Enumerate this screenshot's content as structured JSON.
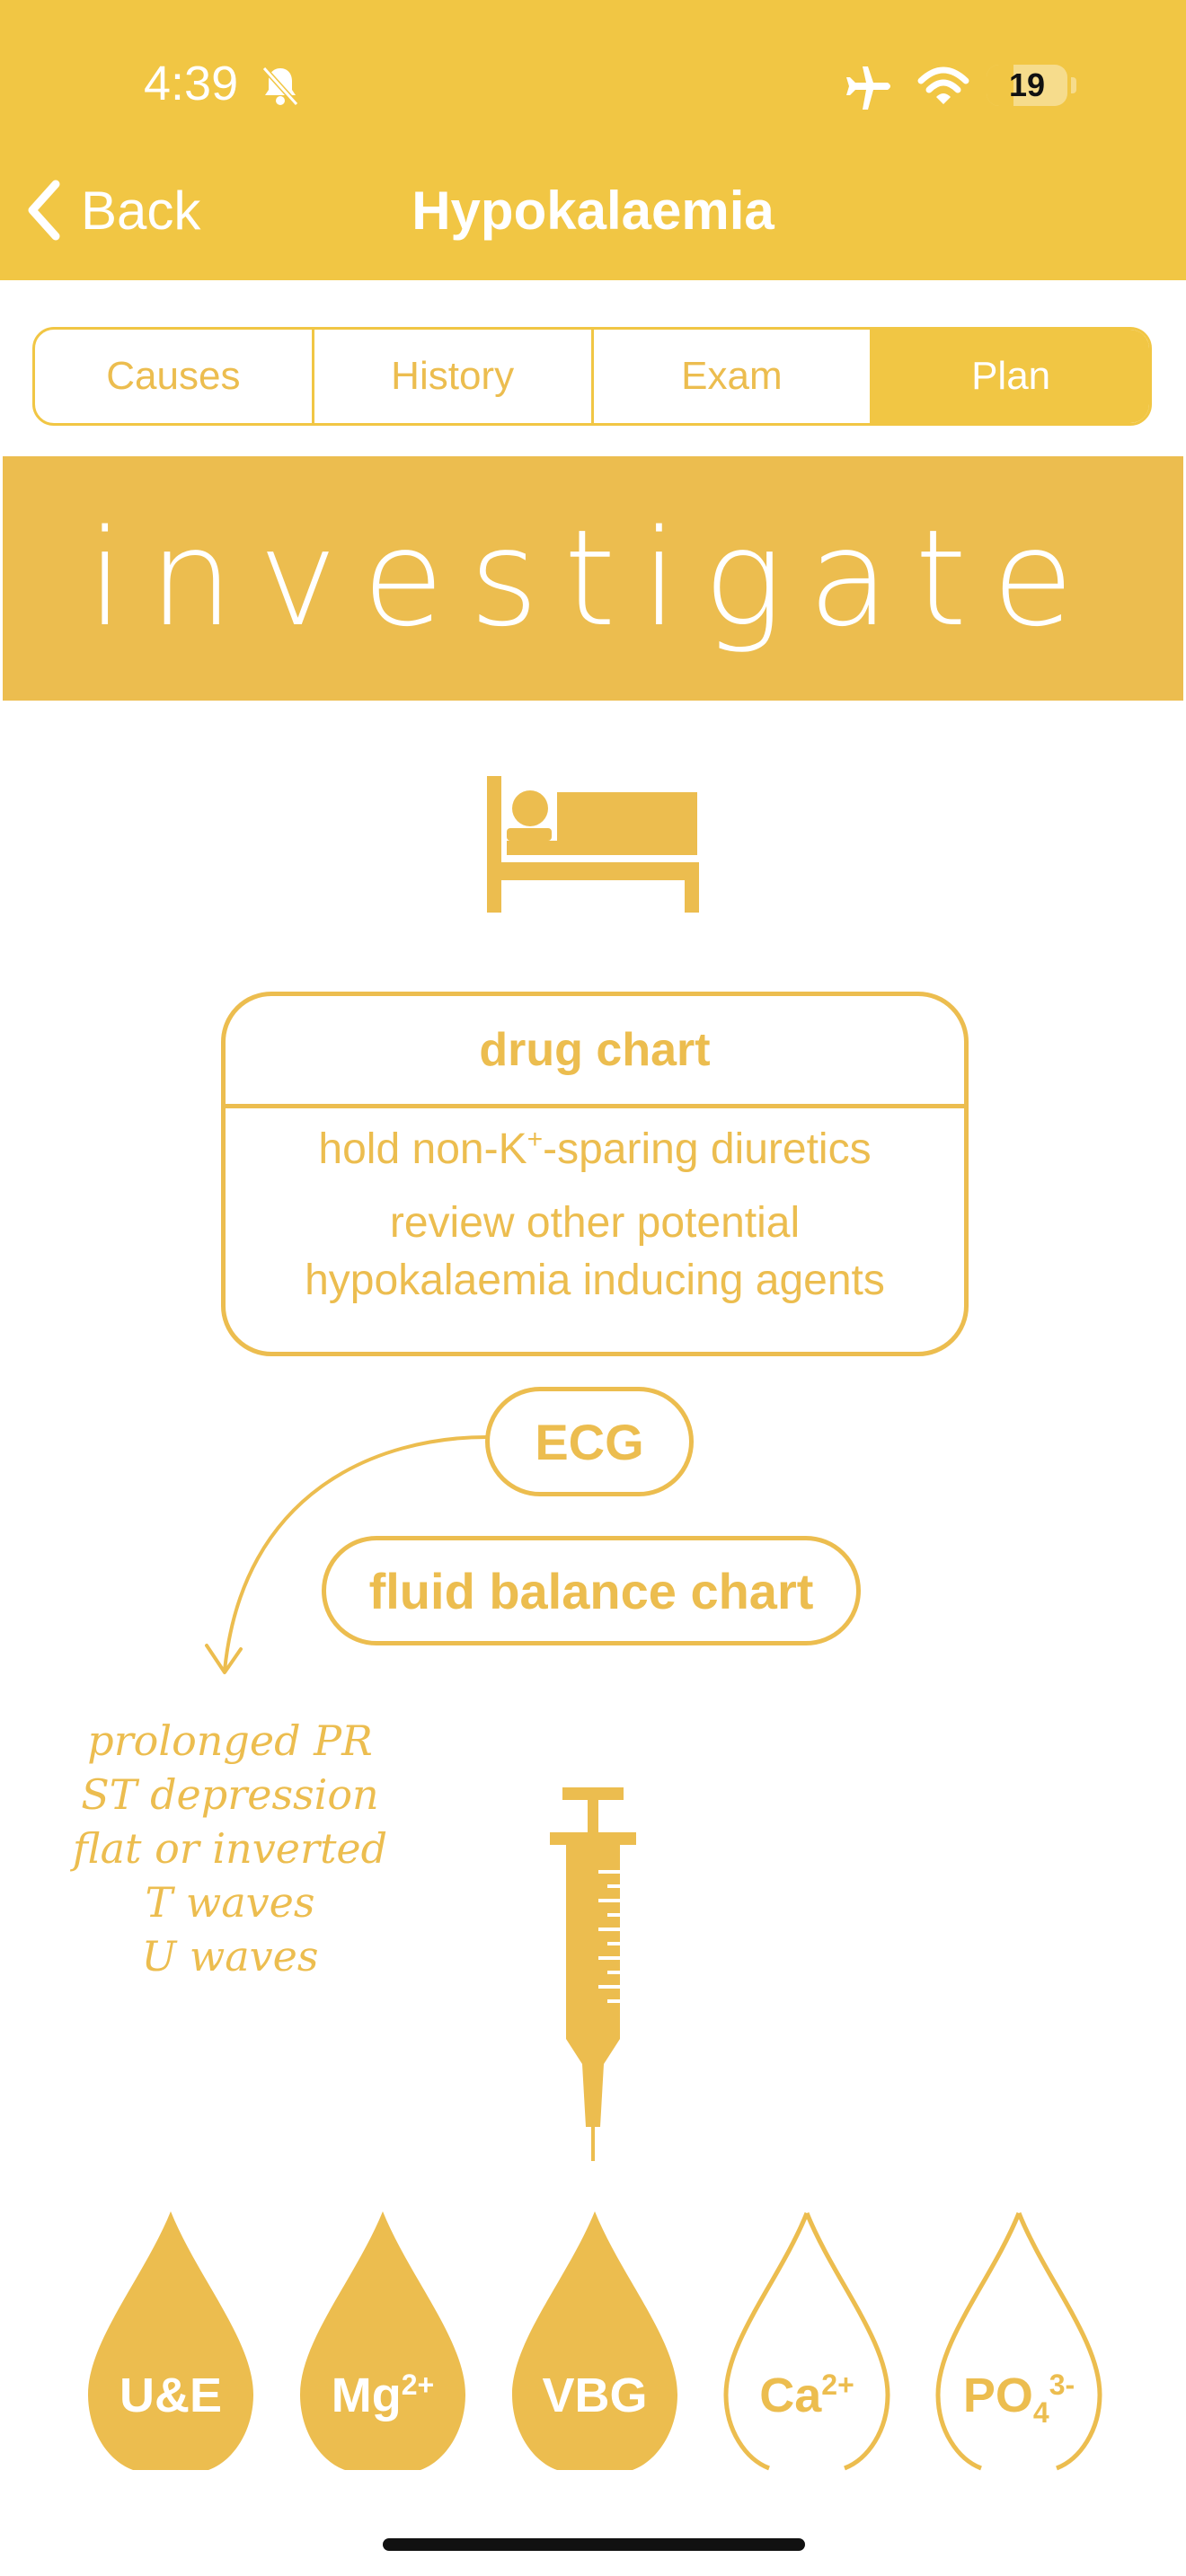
{
  "status_bar": {
    "time": "4:39",
    "battery": "19"
  },
  "nav": {
    "back_label": "Back",
    "title": "Hypokalaemia"
  },
  "tabs": [
    {
      "label": "Causes",
      "active": false
    },
    {
      "label": "History",
      "active": false
    },
    {
      "label": "Exam",
      "active": false
    },
    {
      "label": "Plan",
      "active": true
    }
  ],
  "banner": {
    "text": "investigate"
  },
  "drug_chart": {
    "title": "drug chart",
    "line1_pre": "hold non-K",
    "line1_sup": "+",
    "line1_post": "-sparing diuretics",
    "line2": "review other potential",
    "line3": "hypokalaemia inducing agents"
  },
  "ecg_label": "ECG",
  "fluid_label": "fluid balance chart",
  "ecg_notes": [
    "prolonged PR",
    "ST depression",
    "flat or inverted",
    "T waves",
    "U waves"
  ],
  "bloods": [
    {
      "name": "U&E",
      "base": "U&E",
      "sup": "",
      "sub": "",
      "filled": true
    },
    {
      "name": "Mg2+",
      "base": "Mg",
      "sup": "2+",
      "sub": "",
      "filled": true
    },
    {
      "name": "VBG",
      "base": "VBG",
      "sup": "",
      "sub": "",
      "filled": true
    },
    {
      "name": "Ca2+",
      "base": "Ca",
      "sup": "2+",
      "sub": "",
      "filled": false
    },
    {
      "name": "PO43-",
      "base": "PO",
      "sup": "3-",
      "sub": "4",
      "filled": false
    }
  ],
  "colors": {
    "header": "#f1c644",
    "accent": "#ecbd4f",
    "text_on_accent": "#ffffff"
  },
  "icons": [
    "bell-slash-icon",
    "airplane-icon",
    "wifi-icon",
    "back-chevron-icon",
    "bed-icon",
    "syringe-icon",
    "blood-drop-icon"
  ]
}
